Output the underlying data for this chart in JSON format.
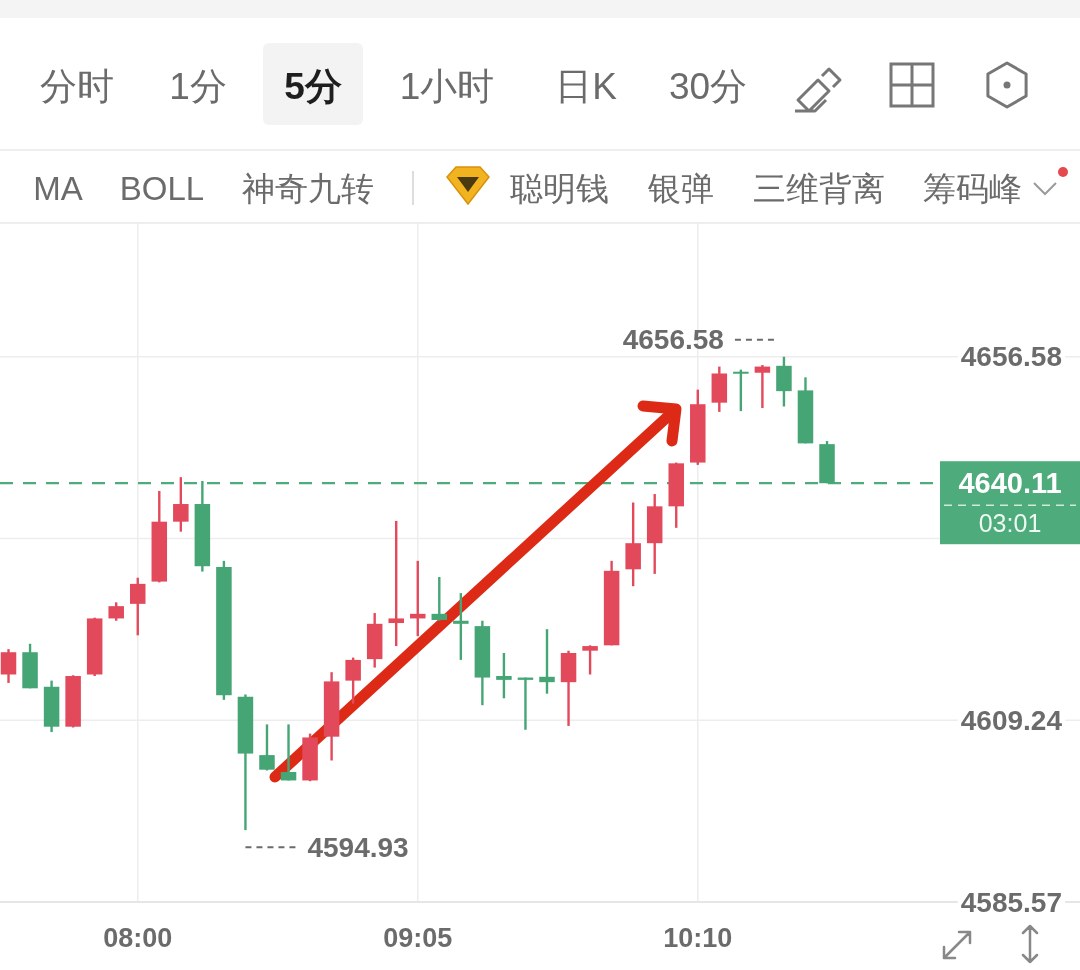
{
  "chart_data": {
    "type": "candlestick",
    "categories": [
      null,
      null,
      null,
      null,
      null,
      null,
      "08:00",
      null,
      null,
      null,
      null,
      null,
      null,
      null,
      null,
      null,
      null,
      null,
      null,
      "09:05",
      null,
      null,
      null,
      null,
      null,
      null,
      null,
      null,
      null,
      null,
      null,
      null,
      "10:10",
      null,
      null,
      null,
      null,
      null,
      null
    ],
    "ohlc": [
      [
        4615.2,
        4618.5,
        4614.1,
        4618.1
      ],
      [
        4618.1,
        4619.2,
        4613.4,
        4613.4
      ],
      [
        4613.6,
        4614.4,
        4607.7,
        4608.4
      ],
      [
        4608.4,
        4615.1,
        4608.3,
        4615.0
      ],
      [
        4615.2,
        4622.6,
        4615.0,
        4622.5
      ],
      [
        4622.5,
        4624.6,
        4622.2,
        4624.1
      ],
      [
        4624.4,
        4627.8,
        4620.3,
        4627.0
      ],
      [
        4627.3,
        4639.1,
        4627.2,
        4635.1
      ],
      [
        4635.1,
        4640.9,
        4633.8,
        4637.4
      ],
      [
        4637.4,
        4640.4,
        4628.6,
        4629.3
      ],
      [
        4629.2,
        4630.0,
        4611.9,
        4612.5
      ],
      [
        4612.3,
        4612.6,
        4594.93,
        4604.9
      ],
      [
        4604.7,
        4608.7,
        4602.7,
        4602.8
      ],
      [
        4602.5,
        4608.7,
        4601.4,
        4601.4
      ],
      [
        4601.4,
        4607.5,
        4601.3,
        4607.0
      ],
      [
        4607.1,
        4615.5,
        4604.0,
        4614.3
      ],
      [
        4614.4,
        4617.4,
        4611.4,
        4617.1
      ],
      [
        4617.2,
        4623.2,
        4616.1,
        4621.8
      ],
      [
        4621.9,
        4635.2,
        4618.9,
        4622.5
      ],
      [
        4622.5,
        4630.0,
        4620.2,
        4623.1
      ],
      [
        4623.1,
        4627.9,
        4622.2,
        4622.3
      ],
      [
        4622.2,
        4625.8,
        4617.1,
        4621.8
      ],
      [
        4621.5,
        4622.2,
        4611.2,
        4614.8
      ],
      [
        4615.0,
        4618.0,
        4612.1,
        4614.5
      ],
      [
        4614.8,
        4614.8,
        4608.0,
        4614.5
      ],
      [
        4614.9,
        4621.1,
        4612.7,
        4614.2
      ],
      [
        4614.2,
        4618.3,
        4608.5,
        4618.0
      ],
      [
        4618.3,
        4619.0,
        4615.2,
        4618.9
      ],
      [
        4619.0,
        4630.0,
        4619.0,
        4628.7
      ],
      [
        4628.9,
        4637.6,
        4626.7,
        4632.3
      ],
      [
        4632.3,
        4638.7,
        4628.3,
        4637.1
      ],
      [
        4637.1,
        4642.8,
        4634.3,
        4642.7
      ],
      [
        4642.8,
        4652.3,
        4642.5,
        4650.4
      ],
      [
        4650.6,
        4655.3,
        4649.4,
        4654.4
      ],
      [
        4654.6,
        4654.9,
        4649.5,
        4654.4
      ],
      [
        4654.5,
        4655.5,
        4649.9,
        4655.3
      ],
      [
        4655.4,
        4656.58,
        4650.1,
        4652.1
      ],
      [
        4652.2,
        4653.9,
        4645.3,
        4645.3
      ],
      [
        4645.2,
        4645.6,
        4640.11,
        4640.11
      ]
    ],
    "colors": [
      "#e24a5c",
      "#45a574",
      "#45a574",
      "#e24a5c",
      "#e24a5c",
      "#e24a5c",
      "#e24a5c",
      "#e24a5c",
      "#e24a5c",
      "#45a574",
      "#45a574",
      "#45a574",
      "#45a574",
      "#45a574",
      "#e24a5c",
      "#e24a5c",
      "#e24a5c",
      "#e24a5c",
      "#e24a5c",
      "#e24a5c",
      "#45a574",
      "#45a574",
      "#45a574",
      "#45a574",
      "#45a574",
      "#45a574",
      "#e24a5c",
      "#e24a5c",
      "#e24a5c",
      "#e24a5c",
      "#e24a5c",
      "#e24a5c",
      "#e24a5c",
      "#e24a5c",
      "#45a574",
      "#e24a5c",
      "#45a574",
      "#45a574",
      "#45a574"
    ],
    "ylim": [
      4585.57,
      4674
    ],
    "yticks": [
      4656.58,
      {
        "value": 4632.91,
        "label": null
      },
      4609.24,
      4585.57
    ],
    "grid": true,
    "ref_lines": [
      {
        "axis": "y",
        "value": 4640.11,
        "label": "4640.11",
        "color": "#4eab7b",
        "line_style": "dashed"
      }
    ],
    "annotations": [
      "分时",
      "1分",
      "5分",
      "1小时",
      "日K",
      "30分",
      "MA",
      "BOLL",
      "神奇九转",
      "聪明钱",
      "银弹",
      "三维背离",
      "筹码峰",
      "03:01",
      "4656.58",
      "4594.93"
    ]
  }
}
